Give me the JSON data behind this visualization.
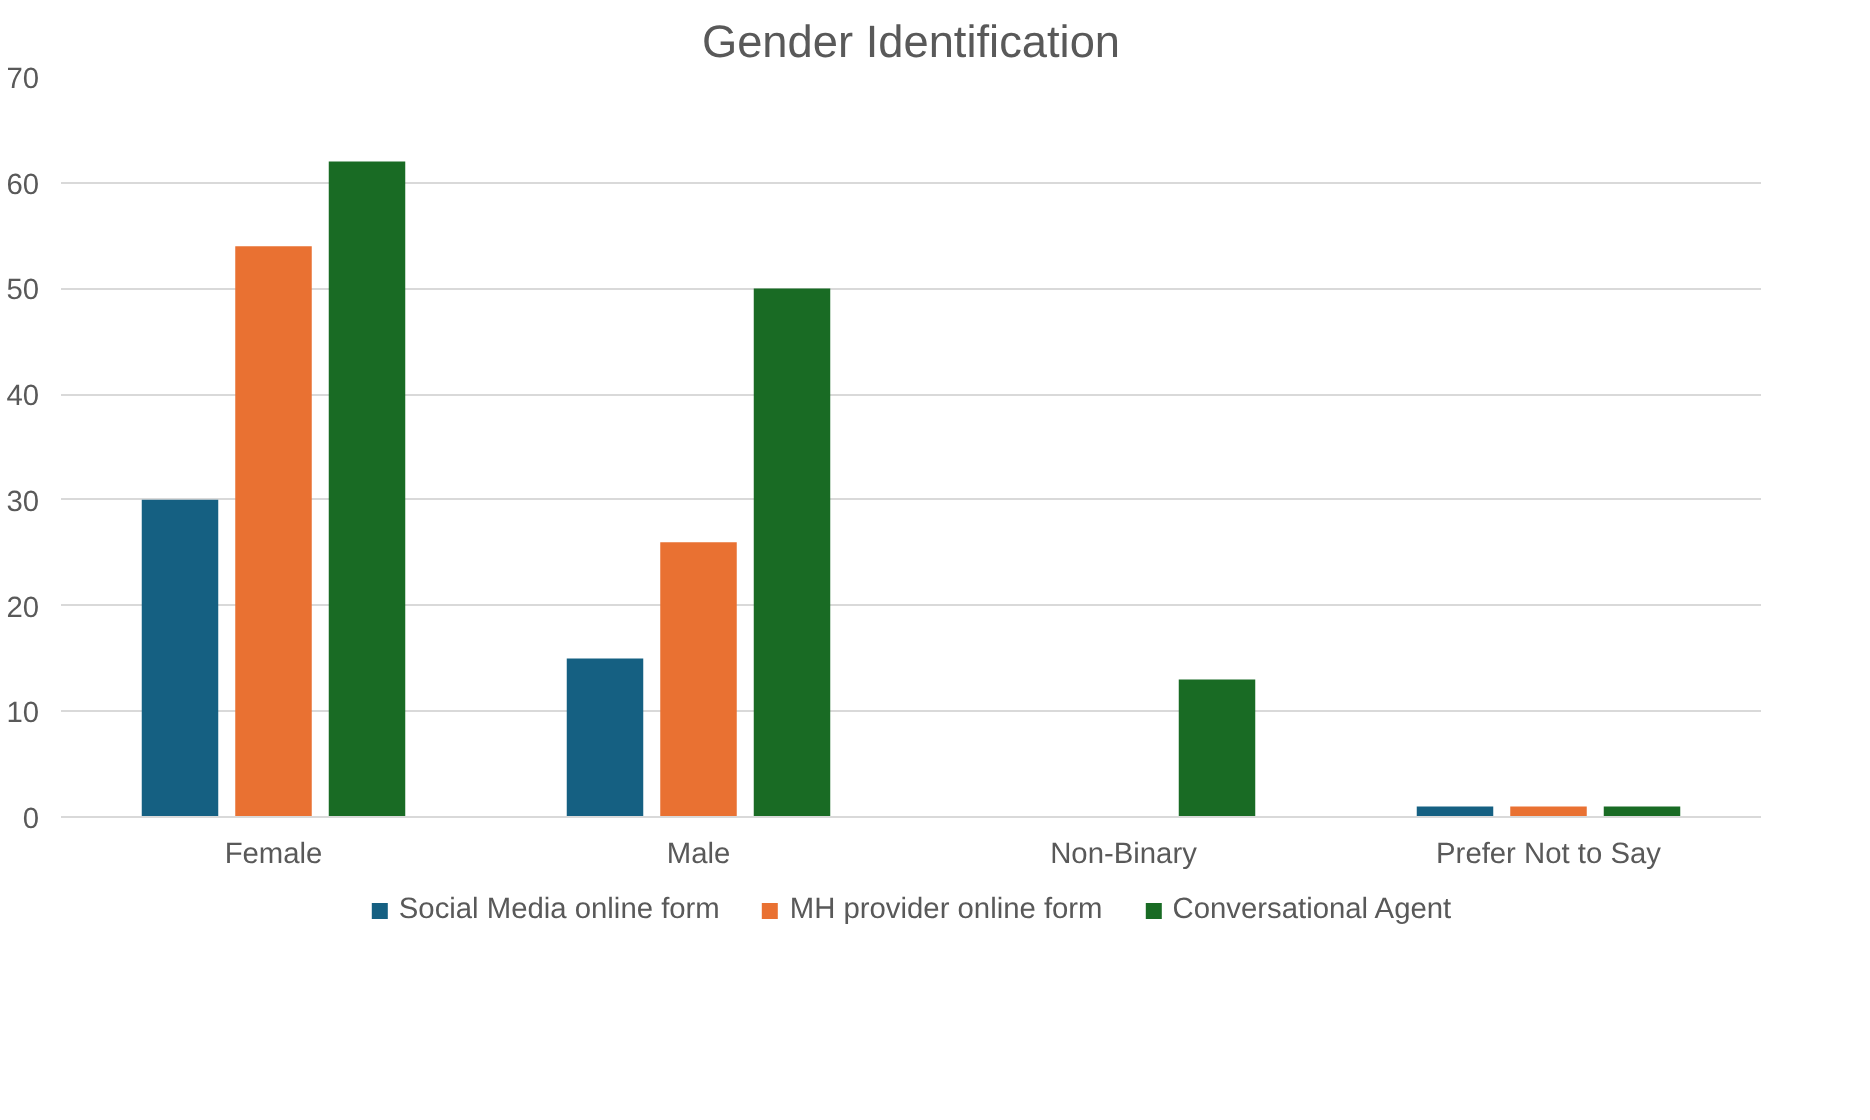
{
  "chart_data": {
    "type": "bar",
    "title": "Gender Identification",
    "categories": [
      "Female",
      "Male",
      "Non-Binary",
      "Prefer Not to Say"
    ],
    "series": [
      {
        "name": "Social Media online form",
        "color": "#156082",
        "values": [
          30,
          15,
          0,
          1
        ]
      },
      {
        "name": "MH provider online form",
        "color": "#e97132",
        "values": [
          54,
          26,
          0,
          1
        ]
      },
      {
        "name": "Conversational Agent",
        "color": "#196b24",
        "values": [
          62,
          50,
          13,
          1
        ]
      }
    ],
    "ylim": [
      0,
      70
    ],
    "yticks": [
      0,
      10,
      20,
      30,
      40,
      50,
      60,
      70
    ],
    "grid": "y",
    "legend": "bottom"
  }
}
